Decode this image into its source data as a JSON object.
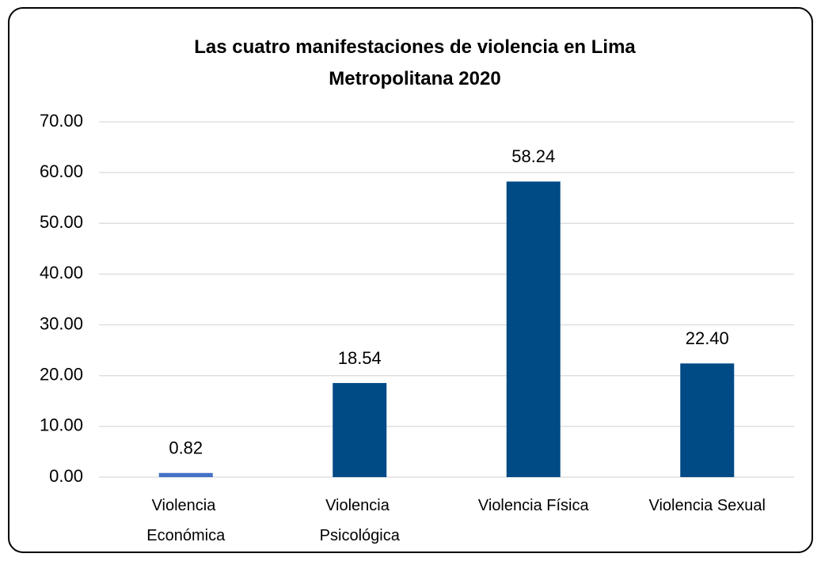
{
  "chart_data": {
    "type": "bar",
    "title": "Las cuatro manifestaciones de violencia en Lima Metropolitana 2020",
    "categories": [
      "Violencia Económica",
      "Violencia Psicológica",
      "Violencia Física",
      "Violencia Sexual"
    ],
    "values": [
      0.82,
      18.54,
      58.24,
      22.4
    ],
    "value_labels": [
      "0.82",
      "18.54",
      "58.24",
      "22.40"
    ],
    "colors": [
      "#4472c4",
      "#004a86",
      "#004a86",
      "#004a86"
    ],
    "ylim": [
      0,
      70
    ],
    "yticks": [
      {
        "value": 0,
        "label": "0.00"
      },
      {
        "value": 10,
        "label": "10.00"
      },
      {
        "value": 20,
        "label": "20.00"
      },
      {
        "value": 30,
        "label": "30.00"
      },
      {
        "value": 40,
        "label": "40.00"
      },
      {
        "value": 50,
        "label": "50.00"
      },
      {
        "value": 60,
        "label": "60.00"
      },
      {
        "value": 70,
        "label": "70.00"
      }
    ],
    "grid": true
  }
}
